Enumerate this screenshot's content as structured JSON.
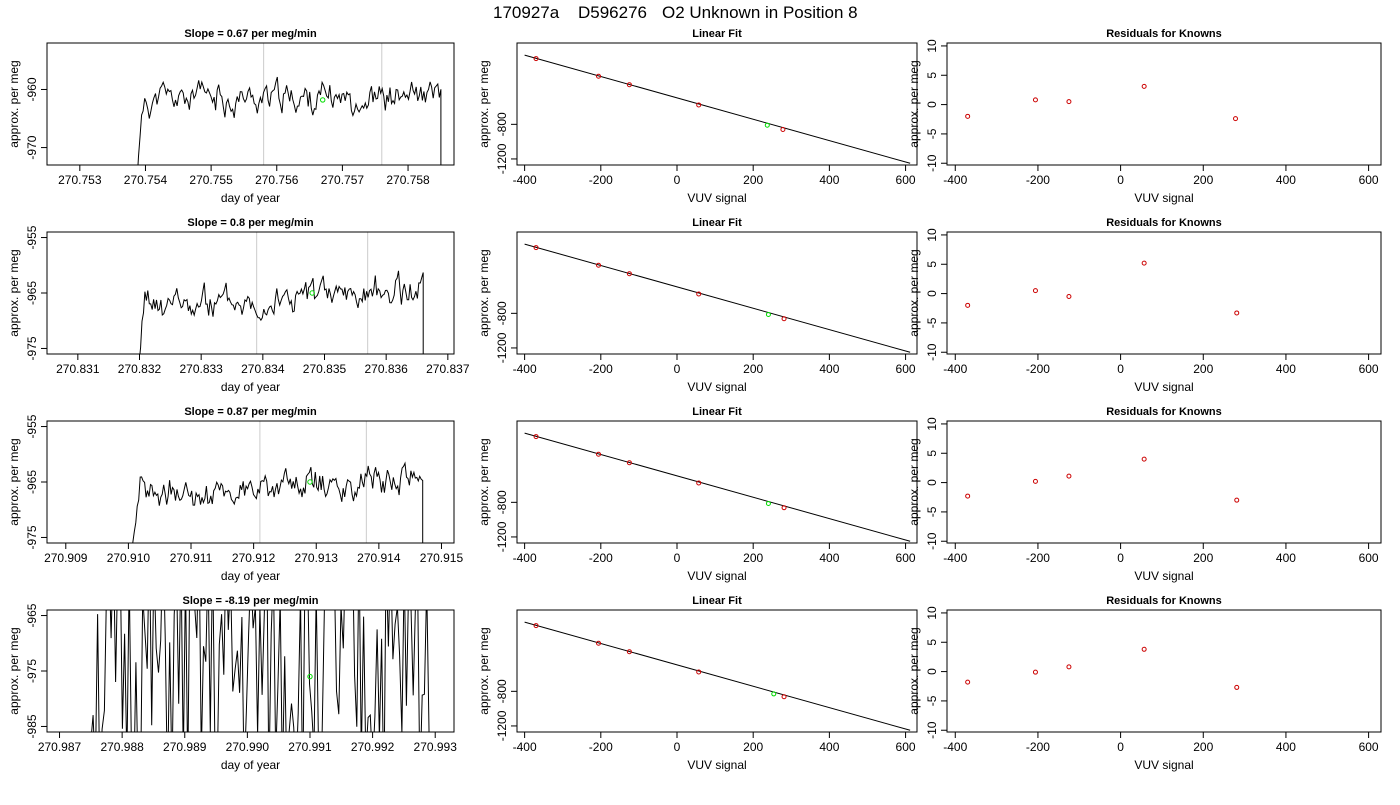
{
  "header": {
    "run": "170927a",
    "sample": "D596276",
    "description": "O2 Unknown in Position  8"
  },
  "colors": {
    "line": "#000000",
    "known_point": "#cc0000",
    "unknown_point": "#00dd00",
    "marker_line": "#cccccc"
  },
  "chart_data": [
    {
      "type": "line",
      "row": 0,
      "title": "Slope =  0.67  per meg/min",
      "xlabel": "day of year",
      "ylabel": "approx. per meg",
      "xlim": [
        270.7525,
        270.7587
      ],
      "ylim": [
        -973,
        -952
      ],
      "xticks": [
        270.753,
        270.754,
        270.755,
        270.756,
        270.757,
        270.758
      ],
      "xtick_labels": [
        "270.753",
        "270.754",
        "270.755",
        "270.756",
        "270.757",
        "270.758"
      ],
      "yticks": [
        -970,
        -960
      ],
      "ytick_labels": [
        "-970",
        "-960"
      ],
      "vlines": [
        270.7558,
        270.7576
      ],
      "unknown_point": {
        "x": 270.7567,
        "y": -961.8
      },
      "trace": {
        "x_start": 270.7538,
        "x_end": 270.7585,
        "n": 200,
        "base": -961.5,
        "slope": 0.2,
        "amp": 2.2,
        "seed": 11,
        "start_y": -985,
        "end_y": -985
      }
    },
    {
      "type": "line",
      "row": 1,
      "title": "Slope =  0.8  per meg/min",
      "xlabel": "day of year",
      "ylabel": "approx. per meg",
      "xlim": [
        270.8305,
        270.8371
      ],
      "ylim": [
        -976,
        -954
      ],
      "xticks": [
        270.831,
        270.832,
        270.833,
        270.834,
        270.835,
        270.836,
        270.837
      ],
      "xtick_labels": [
        "270.831",
        "270.832",
        "270.833",
        "270.834",
        "270.835",
        "270.836",
        "270.837"
      ],
      "yticks": [
        -975,
        -965,
        -955
      ],
      "ytick_labels": [
        "-975",
        "-965",
        "-955"
      ],
      "vlines": [
        270.8339,
        270.8357
      ],
      "unknown_point": {
        "x": 270.8348,
        "y": -965
      },
      "trace": {
        "x_start": 270.8319,
        "x_end": 270.8366,
        "n": 200,
        "base": -966,
        "slope": 1.6,
        "amp": 2.3,
        "seed": 23,
        "start_y": -985,
        "end_y": -985
      }
    },
    {
      "type": "line",
      "row": 2,
      "title": "Slope =  0.87  per meg/min",
      "xlabel": "day of year",
      "ylabel": "approx. per meg",
      "xlim": [
        270.9087,
        270.9152
      ],
      "ylim": [
        -976,
        -954
      ],
      "xticks": [
        270.909,
        270.91,
        270.911,
        270.912,
        270.913,
        270.914,
        270.915
      ],
      "xtick_labels": [
        "270.909",
        "270.910",
        "270.911",
        "270.912",
        "270.913",
        "270.914",
        "270.915"
      ],
      "yticks": [
        -975,
        -965,
        -955
      ],
      "ytick_labels": [
        "-975",
        "-965",
        "-955"
      ],
      "vlines": [
        270.9121,
        270.9138
      ],
      "unknown_point": {
        "x": 270.9129,
        "y": -965
      },
      "trace": {
        "x_start": 270.91,
        "x_end": 270.9147,
        "n": 200,
        "base": -966,
        "slope": 1.7,
        "amp": 2.2,
        "seed": 37,
        "start_y": -985,
        "end_y": -990
      }
    },
    {
      "type": "line",
      "row": 3,
      "title": "Slope =  -8.19  per meg/min",
      "xlabel": "day of year",
      "ylabel": "approx. per meg",
      "xlim": [
        270.9868,
        270.9933
      ],
      "ylim": [
        -986,
        -964
      ],
      "xticks": [
        270.987,
        270.988,
        270.989,
        270.99,
        270.991,
        270.992,
        270.993
      ],
      "xtick_labels": [
        "270.987",
        "270.988",
        "270.989",
        "270.990",
        "270.991",
        "270.992",
        "270.993"
      ],
      "yticks": [
        -985,
        -975,
        -965
      ],
      "ytick_labels": [
        "-985",
        "-975",
        "-965"
      ],
      "vlines": [],
      "unknown_point": {
        "x": 270.991,
        "y": -976
      },
      "trace": {
        "x_start": 270.9875,
        "x_end": 270.9929,
        "n": 150,
        "base": -975,
        "slope": 0,
        "amp": 25,
        "seed": 51,
        "start_y": -990,
        "end_y": -990
      }
    },
    {
      "type": "scatter",
      "row": 0,
      "title": "Linear Fit",
      "xlabel": "VUV signal",
      "ylabel": "approx. per meg",
      "xlim": [
        -420,
        630
      ],
      "ylim": [
        -1270,
        140
      ],
      "xticks": [
        -400,
        -200,
        0,
        200,
        400,
        600
      ],
      "yticks": [
        -1200,
        -800
      ],
      "fit_line": {
        "x": [
          -400,
          612
        ],
        "y": [
          0,
          -1250
        ]
      },
      "knowns": {
        "x": [
          -370,
          -206,
          -125,
          57,
          278
        ],
        "y": [
          -40,
          -244,
          -342,
          -576,
          -860
        ]
      },
      "unknown": {
        "x": 237,
        "y": -810
      }
    },
    {
      "type": "scatter",
      "row": 1,
      "title": "Linear Fit",
      "xlabel": "VUV signal",
      "ylabel": "approx. per meg",
      "xlim": [
        -420,
        630
      ],
      "ylim": [
        -1270,
        140
      ],
      "xticks": [
        -400,
        -200,
        0,
        200,
        400,
        600
      ],
      "yticks": [
        -1200,
        -800
      ],
      "fit_line": {
        "x": [
          -400,
          612
        ],
        "y": [
          0,
          -1250
        ]
      },
      "knowns": {
        "x": [
          -370,
          -206,
          -125,
          57,
          281
        ],
        "y": [
          -40,
          -244,
          -342,
          -576,
          -862
        ]
      },
      "unknown": {
        "x": 240,
        "y": -813
      }
    },
    {
      "type": "scatter",
      "row": 2,
      "title": "Linear Fit",
      "xlabel": "VUV signal",
      "ylabel": "approx. per meg",
      "xlim": [
        -420,
        630
      ],
      "ylim": [
        -1270,
        140
      ],
      "xticks": [
        -400,
        -200,
        0,
        200,
        400,
        600
      ],
      "yticks": [
        -1200,
        -800
      ],
      "fit_line": {
        "x": [
          -400,
          612
        ],
        "y": [
          0,
          -1250
        ]
      },
      "knowns": {
        "x": [
          -370,
          -206,
          -125,
          57,
          281
        ],
        "y": [
          -40,
          -244,
          -342,
          -576,
          -862
        ]
      },
      "unknown": {
        "x": 240,
        "y": -813
      }
    },
    {
      "type": "scatter",
      "row": 3,
      "title": "Linear Fit",
      "xlabel": "VUV signal",
      "ylabel": "approx. per meg",
      "xlim": [
        -420,
        630
      ],
      "ylim": [
        -1270,
        140
      ],
      "xticks": [
        -400,
        -200,
        0,
        200,
        400,
        600
      ],
      "yticks": [
        -1200,
        -800
      ],
      "fit_line": {
        "x": [
          -400,
          612
        ],
        "y": [
          0,
          -1250
        ]
      },
      "knowns": {
        "x": [
          -370,
          -206,
          -125,
          57,
          281
        ],
        "y": [
          -40,
          -244,
          -342,
          -576,
          -862
        ]
      },
      "unknown": {
        "x": 254,
        "y": -830
      }
    },
    {
      "type": "scatter",
      "row": 0,
      "title": "Residuals for Knowns",
      "xlabel": "VUV signal",
      "ylabel": "approx. per meg",
      "xlim": [
        -420,
        630
      ],
      "ylim": [
        -10.3,
        10.5
      ],
      "xticks": [
        -400,
        -200,
        0,
        200,
        400,
        600
      ],
      "yticks": [
        -10,
        -5,
        0,
        5,
        10
      ],
      "knowns": {
        "x": [
          -370,
          -206,
          -125,
          57,
          278
        ],
        "y": [
          -2.0,
          0.8,
          0.5,
          3.1,
          -2.4
        ]
      }
    },
    {
      "type": "scatter",
      "row": 1,
      "title": "Residuals for Knowns",
      "xlabel": "VUV signal",
      "ylabel": "approx. per meg",
      "xlim": [
        -420,
        630
      ],
      "ylim": [
        -10.3,
        10.5
      ],
      "xticks": [
        -400,
        -200,
        0,
        200,
        400,
        600
      ],
      "yticks": [
        -10,
        -5,
        0,
        5,
        10
      ],
      "knowns": {
        "x": [
          -370,
          -206,
          -125,
          57,
          281
        ],
        "y": [
          -2.0,
          0.5,
          -0.5,
          5.2,
          -3.3
        ]
      }
    },
    {
      "type": "scatter",
      "row": 2,
      "title": "Residuals for Knowns",
      "xlabel": "VUV signal",
      "ylabel": "approx. per meg",
      "xlim": [
        -420,
        630
      ],
      "ylim": [
        -10.3,
        10.5
      ],
      "xticks": [
        -400,
        -200,
        0,
        200,
        400,
        600
      ],
      "yticks": [
        -10,
        -5,
        0,
        5,
        10
      ],
      "knowns": {
        "x": [
          -370,
          -206,
          -125,
          57,
          281
        ],
        "y": [
          -2.3,
          0.2,
          1.1,
          4.0,
          -3.0
        ]
      }
    },
    {
      "type": "scatter",
      "row": 3,
      "title": "Residuals for Knowns",
      "xlabel": "VUV signal",
      "ylabel": "approx. per meg",
      "xlim": [
        -420,
        630
      ],
      "ylim": [
        -10.3,
        10.5
      ],
      "xticks": [
        -400,
        -200,
        0,
        200,
        400,
        600
      ],
      "yticks": [
        -10,
        -5,
        0,
        5,
        10
      ],
      "knowns": {
        "x": [
          -370,
          -206,
          -125,
          57,
          281
        ],
        "y": [
          -1.8,
          -0.1,
          0.8,
          3.8,
          -2.7
        ]
      }
    }
  ]
}
